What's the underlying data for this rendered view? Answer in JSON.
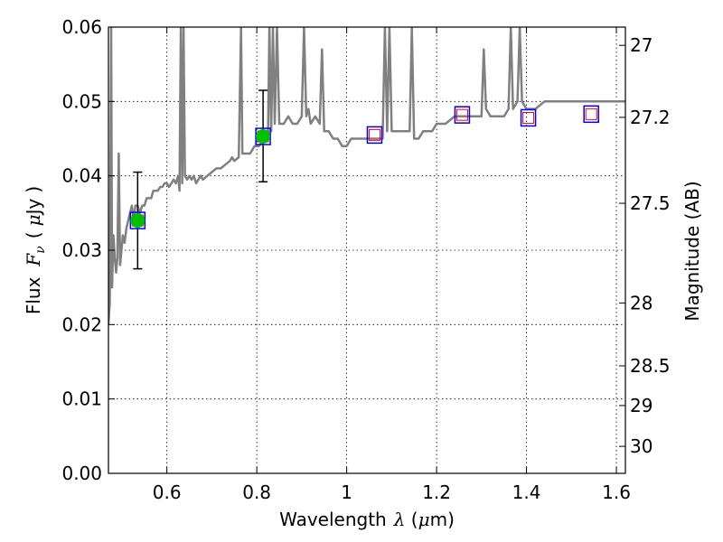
{
  "chart_data": {
    "type": "scatter",
    "xlabel": "Wavelength",
    "xlabel_symbol": "λ",
    "xlabel_unit_open": " (",
    "xlabel_unit_mu": "μ",
    "xlabel_unit_rest": "m)",
    "ylabel_left_word": "Flux",
    "ylabel_left_symbol": "F",
    "ylabel_left_sub": "ν",
    "ylabel_left_unit_open": "(",
    "ylabel_left_unit_mu": "μ",
    "ylabel_left_unit_rest": "Jy",
    "ylabel_left_unit_close": ")",
    "ylabel_right": "Magnitude (AB)",
    "xlim": [
      0.47,
      1.62
    ],
    "ylim": [
      0.0,
      0.06
    ],
    "x_ticks": [
      {
        "value": 0.6,
        "label": "0.6"
      },
      {
        "value": 0.8,
        "label": "0.8"
      },
      {
        "value": 1.0,
        "label": "1"
      },
      {
        "value": 1.2,
        "label": "1.2"
      },
      {
        "value": 1.4,
        "label": "1.4"
      },
      {
        "value": 1.6,
        "label": "1.6"
      }
    ],
    "y_ticks": [
      {
        "value": 0.0,
        "label": "0.00"
      },
      {
        "value": 0.01,
        "label": "0.01"
      },
      {
        "value": 0.02,
        "label": "0.02"
      },
      {
        "value": 0.03,
        "label": "0.03"
      },
      {
        "value": 0.04,
        "label": "0.04"
      },
      {
        "value": 0.05,
        "label": "0.05"
      },
      {
        "value": 0.06,
        "label": "0.06"
      }
    ],
    "right_ticks": [
      {
        "mag": 27,
        "label": "27"
      },
      {
        "mag": 27.2,
        "label": "27.2"
      },
      {
        "mag": 27.5,
        "label": "27.5"
      },
      {
        "mag": 28,
        "label": "28"
      },
      {
        "mag": 28.5,
        "label": "28.5"
      },
      {
        "mag": 29,
        "label": "29"
      },
      {
        "mag": 30,
        "label": "30"
      }
    ],
    "colors": {
      "spectrum": "#808080",
      "observed": "#00c000",
      "model_box": "#0000ff",
      "model_inner": "#ff0000",
      "errorbar": "#000000"
    },
    "spectrum": {
      "name": "model spectrum",
      "points": [
        [
          0.47,
          0.02
        ],
        [
          0.473,
          0.023
        ],
        [
          0.476,
          0.06
        ],
        [
          0.478,
          0.025
        ],
        [
          0.481,
          0.032
        ],
        [
          0.484,
          0.029
        ],
        [
          0.487,
          0.027
        ],
        [
          0.49,
          0.029
        ],
        [
          0.493,
          0.043
        ],
        [
          0.496,
          0.028
        ],
        [
          0.499,
          0.03
        ],
        [
          0.502,
          0.032
        ],
        [
          0.506,
          0.031
        ],
        [
          0.51,
          0.033
        ],
        [
          0.514,
          0.034
        ],
        [
          0.518,
          0.035
        ],
        [
          0.522,
          0.036
        ],
        [
          0.526,
          0.034
        ],
        [
          0.53,
          0.036
        ],
        [
          0.535,
          0.036
        ],
        [
          0.54,
          0.035
        ],
        [
          0.545,
          0.036
        ],
        [
          0.55,
          0.036
        ],
        [
          0.555,
          0.037
        ],
        [
          0.56,
          0.037
        ],
        [
          0.565,
          0.037
        ],
        [
          0.57,
          0.038
        ],
        [
          0.575,
          0.038
        ],
        [
          0.58,
          0.038
        ],
        [
          0.585,
          0.0385
        ],
        [
          0.59,
          0.0385
        ],
        [
          0.595,
          0.039
        ],
        [
          0.6,
          0.039
        ],
        [
          0.605,
          0.0385
        ],
        [
          0.61,
          0.039
        ],
        [
          0.615,
          0.0395
        ],
        [
          0.62,
          0.039
        ],
        [
          0.625,
          0.04
        ],
        [
          0.628,
          0.038
        ],
        [
          0.631,
          0.06
        ],
        [
          0.634,
          0.039
        ],
        [
          0.637,
          0.06
        ],
        [
          0.64,
          0.04
        ],
        [
          0.645,
          0.0395
        ],
        [
          0.65,
          0.04
        ],
        [
          0.655,
          0.0395
        ],
        [
          0.66,
          0.04
        ],
        [
          0.665,
          0.039
        ],
        [
          0.67,
          0.0395
        ],
        [
          0.675,
          0.04
        ],
        [
          0.68,
          0.0395
        ],
        [
          0.69,
          0.04
        ],
        [
          0.7,
          0.0405
        ],
        [
          0.71,
          0.041
        ],
        [
          0.72,
          0.041
        ],
        [
          0.73,
          0.0415
        ],
        [
          0.74,
          0.042
        ],
        [
          0.745,
          0.0425
        ],
        [
          0.75,
          0.042
        ],
        [
          0.76,
          0.0425
        ],
        [
          0.765,
          0.06
        ],
        [
          0.768,
          0.043
        ],
        [
          0.775,
          0.043
        ],
        [
          0.785,
          0.043
        ],
        [
          0.795,
          0.044
        ],
        [
          0.805,
          0.044
        ],
        [
          0.815,
          0.045
        ],
        [
          0.82,
          0.045
        ],
        [
          0.825,
          0.046
        ],
        [
          0.828,
          0.06
        ],
        [
          0.832,
          0.046
        ],
        [
          0.836,
          0.06
        ],
        [
          0.84,
          0.047
        ],
        [
          0.845,
          0.06
        ],
        [
          0.85,
          0.047
        ],
        [
          0.86,
          0.047
        ],
        [
          0.87,
          0.048
        ],
        [
          0.88,
          0.047
        ],
        [
          0.89,
          0.047
        ],
        [
          0.9,
          0.048
        ],
        [
          0.905,
          0.06
        ],
        [
          0.91,
          0.048
        ],
        [
          0.915,
          0.049
        ],
        [
          0.92,
          0.047
        ],
        [
          0.93,
          0.048
        ],
        [
          0.94,
          0.047
        ],
        [
          0.945,
          0.057
        ],
        [
          0.95,
          0.046
        ],
        [
          0.96,
          0.046
        ],
        [
          0.97,
          0.045
        ],
        [
          0.98,
          0.045
        ],
        [
          0.99,
          0.044
        ],
        [
          1.0,
          0.044
        ],
        [
          1.01,
          0.045
        ],
        [
          1.02,
          0.045
        ],
        [
          1.03,
          0.045
        ],
        [
          1.04,
          0.045
        ],
        [
          1.05,
          0.045
        ],
        [
          1.06,
          0.045
        ],
        [
          1.07,
          0.045
        ],
        [
          1.08,
          0.045
        ],
        [
          1.085,
          0.06
        ],
        [
          1.09,
          0.046
        ],
        [
          1.095,
          0.06
        ],
        [
          1.1,
          0.046
        ],
        [
          1.12,
          0.046
        ],
        [
          1.14,
          0.046
        ],
        [
          1.145,
          0.06
        ],
        [
          1.15,
          0.045
        ],
        [
          1.16,
          0.045
        ],
        [
          1.17,
          0.046
        ],
        [
          1.18,
          0.046
        ],
        [
          1.19,
          0.046
        ],
        [
          1.2,
          0.047
        ],
        [
          1.22,
          0.047
        ],
        [
          1.24,
          0.048
        ],
        [
          1.26,
          0.048
        ],
        [
          1.27,
          0.048
        ],
        [
          1.28,
          0.048
        ],
        [
          1.29,
          0.048
        ],
        [
          1.3,
          0.048
        ],
        [
          1.305,
          0.057
        ],
        [
          1.31,
          0.049
        ],
        [
          1.32,
          0.048
        ],
        [
          1.34,
          0.048
        ],
        [
          1.35,
          0.048
        ],
        [
          1.36,
          0.049
        ],
        [
          1.365,
          0.06
        ],
        [
          1.37,
          0.049
        ],
        [
          1.38,
          0.05
        ],
        [
          1.385,
          0.06
        ],
        [
          1.39,
          0.05
        ],
        [
          1.4,
          0.049
        ],
        [
          1.42,
          0.049
        ],
        [
          1.44,
          0.05
        ],
        [
          1.46,
          0.05
        ],
        [
          1.48,
          0.05
        ],
        [
          1.5,
          0.05
        ],
        [
          1.52,
          0.05
        ],
        [
          1.54,
          0.05
        ],
        [
          1.56,
          0.05
        ],
        [
          1.58,
          0.05
        ],
        [
          1.6,
          0.05
        ],
        [
          1.62,
          0.05
        ]
      ]
    },
    "observed": {
      "name": "observed photometry",
      "points": [
        {
          "x": 0.535,
          "y": 0.034,
          "err_low": 0.0275,
          "err_high": 0.0405
        },
        {
          "x": 0.814,
          "y": 0.0453,
          "err_low": 0.0392,
          "err_high": 0.0515
        }
      ]
    },
    "model": {
      "name": "model photometry",
      "points": [
        {
          "x": 0.535,
          "y": 0.034
        },
        {
          "x": 0.814,
          "y": 0.0453
        },
        {
          "x": 1.062,
          "y": 0.0455
        },
        {
          "x": 1.257,
          "y": 0.0482
        },
        {
          "x": 1.404,
          "y": 0.0478
        },
        {
          "x": 1.544,
          "y": 0.0483
        }
      ]
    }
  }
}
